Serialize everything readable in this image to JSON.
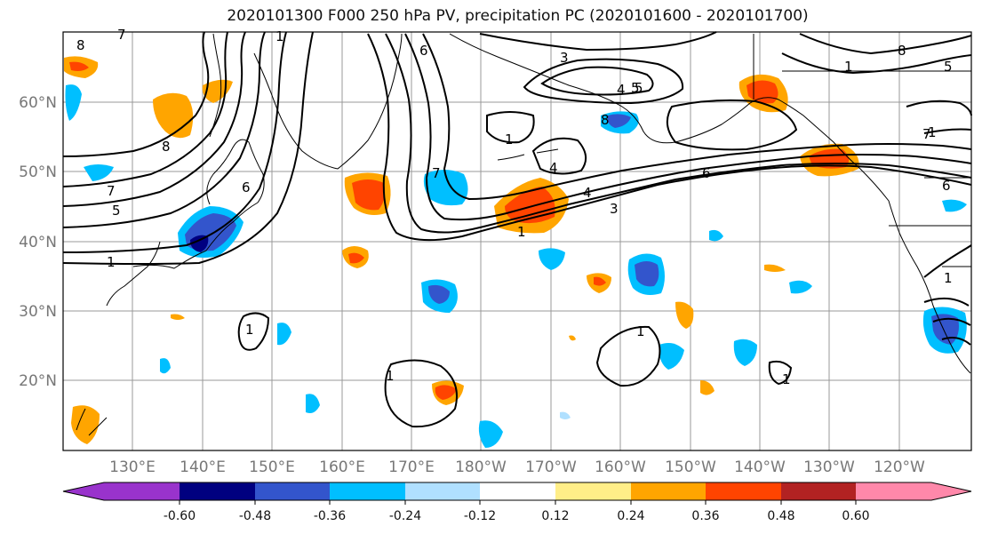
{
  "title": "2020101300 F000 250 hPa PV, precipitation PC (2020101600 - 2020101700)",
  "map": {
    "lon_labels": [
      "130°E",
      "140°E",
      "150°E",
      "160°E",
      "170°E",
      "180°W",
      "170°W",
      "160°W",
      "150°W",
      "140°W",
      "130°W",
      "120°W"
    ],
    "lat_labels": [
      "60°N",
      "50°N",
      "40°N",
      "30°N",
      "20°N"
    ],
    "contour_labels": [
      "8",
      "1",
      "7",
      "5",
      "8",
      "3",
      "5",
      "4",
      "6",
      "1",
      "3",
      "4",
      "5",
      "8",
      "6",
      "7",
      "4",
      "8",
      "6",
      "7",
      "1",
      "6",
      "7",
      "5",
      "1",
      "1",
      "1",
      "1",
      "1",
      "1",
      "1",
      "1"
    ]
  },
  "colorbar": {
    "colors": [
      "#9933cc",
      "#000080",
      "#3355cc",
      "#00bfff",
      "#b0e0ff",
      "#ffffff",
      "#ffee88",
      "#ffa500",
      "#ff4400",
      "#b22222",
      "#ff88aa"
    ],
    "tick_labels": [
      "-0.60",
      "-0.48",
      "-0.36",
      "-0.24",
      "-0.12",
      "0.12",
      "0.24",
      "0.36",
      "0.48",
      "0.60"
    ]
  }
}
